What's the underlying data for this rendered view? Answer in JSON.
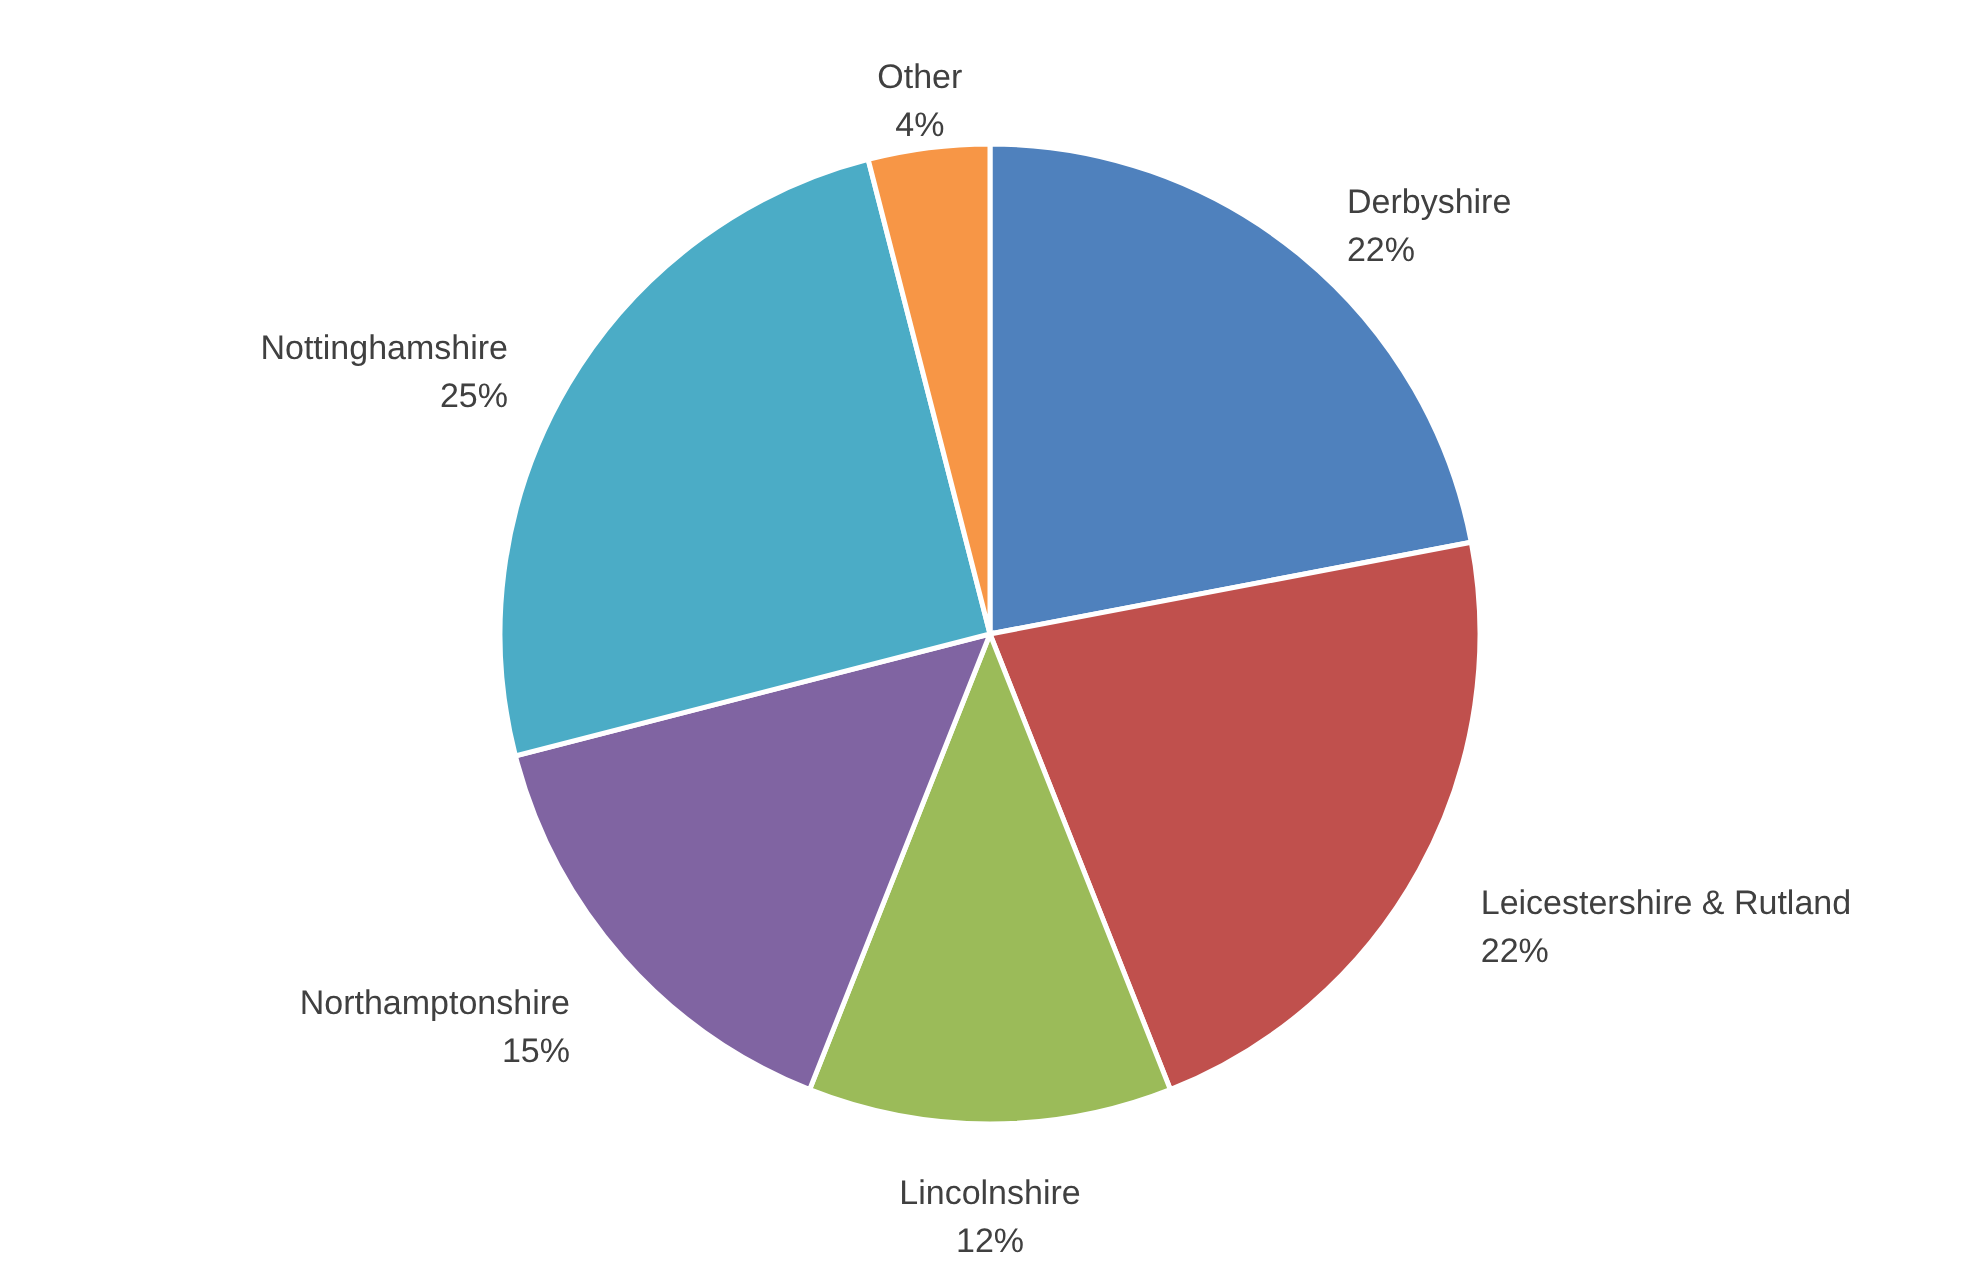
{
  "chart_data": {
    "type": "pie",
    "categories": [
      "Derbyshire",
      "Leicestershire & Rutland",
      "Lincolnshire",
      "Northamptonshire",
      "Nottinghamshire",
      "Other"
    ],
    "values": [
      22,
      22,
      12,
      15,
      25,
      4
    ],
    "value_labels": [
      "22%",
      "22%",
      "12%",
      "15%",
      "25%",
      "4%"
    ],
    "colors": [
      "#4f81bd",
      "#c0504d",
      "#9bbb59",
      "#8064a2",
      "#4bacc6",
      "#f79646"
    ]
  }
}
